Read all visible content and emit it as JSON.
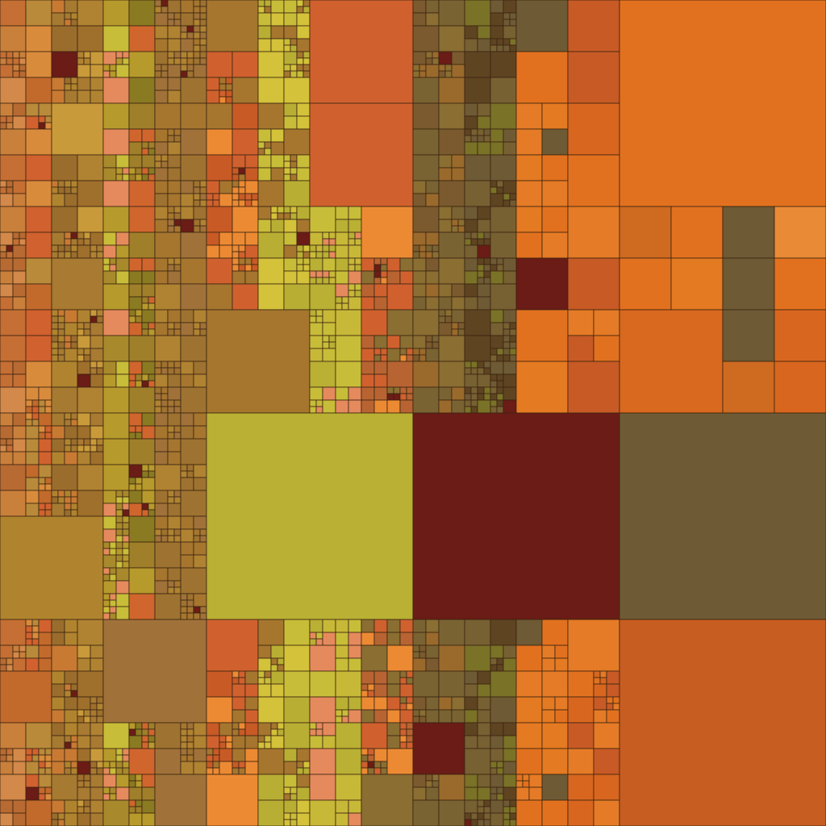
{
  "image": {
    "description_visible_text": "",
    "palette": {
      "deep_orange": "#e2711f",
      "orange": "#e57b26",
      "light_orange": "#ec8a33",
      "rust": "#c85a26",
      "ochre": "#a6762f",
      "mustard": "#b79a2c",
      "yellow_green": "#c8bd38",
      "olive": "#7a7227",
      "brown_olive": "#776032",
      "dark_brown": "#5e4421",
      "salmon": "#e58a5d",
      "maroon": "#6b1c16",
      "grid_line": "#3a2410"
    }
  }
}
